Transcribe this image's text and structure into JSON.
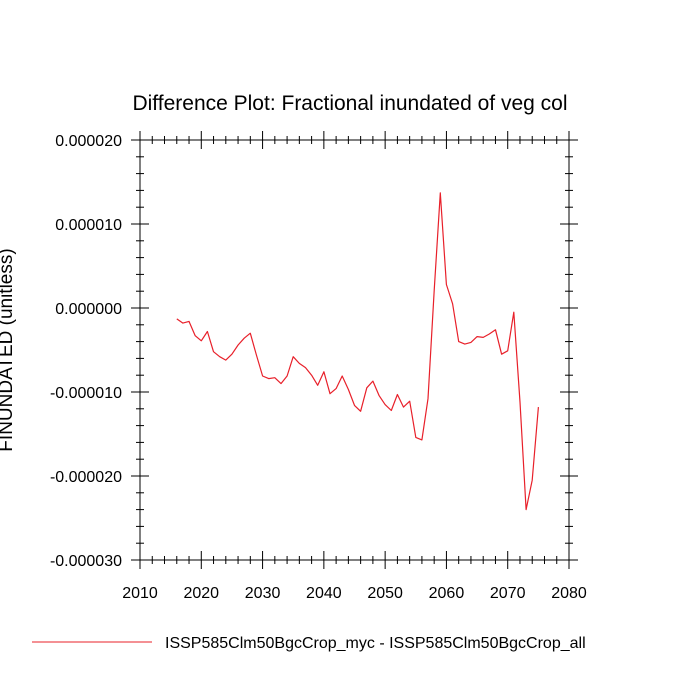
{
  "chart_data": {
    "type": "line",
    "title": "Difference Plot: Fractional inundated of veg col",
    "ylabel": "FINUNDATED  (unitless)",
    "xlim": [
      2010,
      2080
    ],
    "ylim": [
      -3e-05,
      2e-05
    ],
    "x_ticks": [
      2010,
      2020,
      2030,
      2040,
      2050,
      2060,
      2070,
      2080
    ],
    "x_tick_labels": [
      "2010",
      "2020",
      "2030",
      "2040",
      "2050",
      "2060",
      "2070",
      "2080"
    ],
    "y_ticks": [
      -3e-05,
      -2e-05,
      -1e-05,
      0,
      1e-05,
      2e-05
    ],
    "y_tick_labels": [
      "-0.000030",
      "-0.000020",
      "-0.000010",
      "0.000000",
      "0.000010",
      "0.000020"
    ],
    "legend_position": "bottom",
    "series": [
      {
        "name": "ISSP585Clm50BgcCrop_myc - ISSP585Clm50BgcCrop_all",
        "color": "#e8202a",
        "x": [
          2016,
          2017,
          2018,
          2019,
          2020,
          2021,
          2022,
          2023,
          2024,
          2025,
          2026,
          2027,
          2028,
          2029,
          2030,
          2031,
          2032,
          2033,
          2034,
          2035,
          2036,
          2037,
          2038,
          2039,
          2040,
          2041,
          2042,
          2043,
          2044,
          2045,
          2046,
          2047,
          2048,
          2049,
          2050,
          2051,
          2052,
          2053,
          2054,
          2055,
          2056,
          2057,
          2058,
          2059,
          2060,
          2061,
          2062,
          2063,
          2064,
          2065,
          2066,
          2067,
          2068,
          2069,
          2070,
          2071,
          2072,
          2073,
          2074,
          2075
        ],
        "y": [
          -1.3e-06,
          -1.8e-06,
          -1.6e-06,
          -3.3e-06,
          -3.9e-06,
          -2.8e-06,
          -5.2e-06,
          -5.8e-06,
          -6.2e-06,
          -5.5e-06,
          -4.4e-06,
          -3.6e-06,
          -3e-06,
          -5.6e-06,
          -8.1e-06,
          -8.4e-06,
          -8.3e-06,
          -9e-06,
          -8.1e-06,
          -5.8e-06,
          -6.6e-06,
          -7.1e-06,
          -8e-06,
          -9.2e-06,
          -7.6e-06,
          -1.02e-05,
          -9.6e-06,
          -8.1e-06,
          -9.7e-06,
          -1.16e-05,
          -1.23e-05,
          -9.5e-06,
          -8.7e-06,
          -1.04e-05,
          -1.15e-05,
          -1.22e-05,
          -1.03e-05,
          -1.18e-05,
          -1.11e-05,
          -1.54e-05,
          -1.57e-05,
          -1.08e-05,
          2.1e-06,
          1.37e-05,
          2.8e-06,
          5e-07,
          -4e-06,
          -4.3e-06,
          -4.1e-06,
          -3.4e-06,
          -3.5e-06,
          -3.1e-06,
          -2.6e-06,
          -5.5e-06,
          -5.1e-06,
          -5e-07,
          -1.12e-05,
          -2.4e-05,
          -2.05e-05,
          -1.18e-05
        ]
      }
    ]
  }
}
